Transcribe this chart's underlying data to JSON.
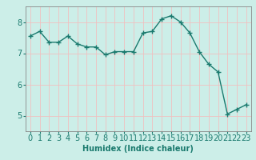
{
  "x": [
    0,
    1,
    2,
    3,
    4,
    5,
    6,
    7,
    8,
    9,
    10,
    11,
    12,
    13,
    14,
    15,
    16,
    17,
    18,
    19,
    20,
    21,
    22,
    23
  ],
  "y": [
    7.55,
    7.7,
    7.35,
    7.35,
    7.55,
    7.3,
    7.2,
    7.2,
    6.95,
    7.05,
    7.05,
    7.05,
    7.65,
    7.7,
    8.1,
    8.2,
    8.0,
    7.65,
    7.05,
    6.65,
    6.4,
    5.05,
    5.2,
    5.35
  ],
  "line_color": "#1a7a6e",
  "marker": "+",
  "marker_size": 4,
  "linewidth": 1.0,
  "bg_color": "#cceee8",
  "grid_color": "#f0c0c0",
  "xlabel": "Humidex (Indice chaleur)",
  "xlim": [
    -0.5,
    23.5
  ],
  "ylim": [
    4.5,
    8.5
  ],
  "yticks": [
    5,
    6,
    7,
    8
  ],
  "xticks": [
    0,
    1,
    2,
    3,
    4,
    5,
    6,
    7,
    8,
    9,
    10,
    11,
    12,
    13,
    14,
    15,
    16,
    17,
    18,
    19,
    20,
    21,
    22,
    23
  ],
  "xlabel_fontsize": 7,
  "tick_fontsize": 7,
  "axis_color": "#1a7a6e"
}
